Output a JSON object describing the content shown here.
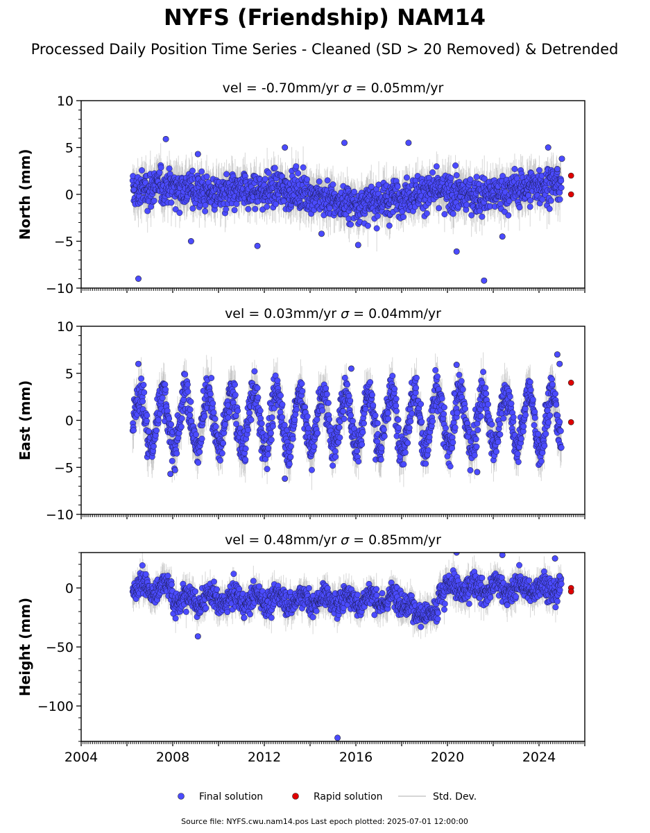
{
  "title": "NYFS (Friendship) NAM14",
  "subtitle": "Processed Daily Position Time Series - Cleaned (SD > 20 Removed) & Detrended",
  "legend": {
    "final_label": "Final solution",
    "rapid_label": "Rapid solution",
    "std_label": "Std. Dev."
  },
  "footer": "Source file: NYFS.cwu.nam14.pos  Last epoch plotted: 2025-07-01 12:00:00",
  "colors": {
    "final": "#4b4bff",
    "rapid": "#e00000",
    "std": "#b8b8b8"
  },
  "chart_data": [
    {
      "type": "scatter",
      "title_vel": "vel = -0.70mm/yr",
      "title_sigma_sym": "σ",
      "title_sigma": " = 0.05mm/yr",
      "ylabel": "North (mm)",
      "xlim": [
        2004,
        2026
      ],
      "ylim": [
        -10,
        10
      ],
      "yticks": [
        10,
        5,
        0,
        -5,
        -10
      ],
      "yticklabels": [
        "10",
        "5",
        "0",
        "−5",
        "−10"
      ],
      "xticks": [],
      "xticklabels": [],
      "series": [
        {
          "name": "Final solution",
          "x": [
            2006.3,
            2006.5,
            2007.7,
            2008.8,
            2009.1,
            2011.7,
            2012.9,
            2014.5,
            2015.5,
            2016.1,
            2018.3,
            2020.4,
            2021.6,
            2022.4,
            2024.4,
            2024.8,
            2025.0
          ],
          "y": [
            0.5,
            -9.0,
            5.9,
            -5.0,
            4.3,
            -5.5,
            5.0,
            -4.2,
            5.5,
            -5.4,
            5.5,
            -6.1,
            -9.2,
            -4.5,
            5.0,
            2.7,
            3.8
          ]
        },
        {
          "name": "Rapid solution",
          "x": [
            2025.4,
            2025.4
          ],
          "y": [
            2.0,
            0.0
          ]
        }
      ]
    },
    {
      "type": "scatter",
      "title_vel": "vel = 0.03mm/yr",
      "title_sigma_sym": "σ",
      "title_sigma": " = 0.04mm/yr",
      "ylabel": "East (mm)",
      "xlim": [
        2004,
        2026
      ],
      "ylim": [
        -10,
        10
      ],
      "yticks": [
        10,
        5,
        0,
        -5,
        -10
      ],
      "yticklabels": [
        "10",
        "5",
        "0",
        "−5",
        "−10"
      ],
      "xticks": [],
      "xticklabels": [],
      "seasonal_amplitude_mm": 3.0,
      "series": [
        {
          "name": "Final solution",
          "x": [
            2006.5,
            2007.9,
            2008.1,
            2012.9,
            2015.8,
            2020.4,
            2021.3,
            2024.8,
            2024.9
          ],
          "y": [
            6.0,
            -5.7,
            -5.3,
            -6.2,
            5.5,
            5.9,
            -5.5,
            7.0,
            6.0
          ]
        },
        {
          "name": "Rapid solution",
          "x": [
            2025.4,
            2025.4
          ],
          "y": [
            4.0,
            -0.2
          ]
        }
      ]
    },
    {
      "type": "scatter",
      "title_vel": "vel = 0.48mm/yr",
      "title_sigma_sym": "σ",
      "title_sigma": " = 0.85mm/yr",
      "ylabel": "Height (mm)",
      "xlim": [
        2004,
        2026
      ],
      "ylim": [
        -130,
        30
      ],
      "yticks": [
        0,
        -50,
        -100
      ],
      "yticklabels": [
        "0",
        "−50",
        "−100"
      ],
      "xticks": [
        2004,
        2008,
        2012,
        2016,
        2020,
        2024
      ],
      "xticklabels": [
        "2004",
        "2008",
        "2012",
        "2016",
        "2020",
        "2024"
      ],
      "series": [
        {
          "name": "Final solution",
          "x": [
            2009.1,
            2015.2,
            2020.4,
            2022.4,
            2024.7,
            2024.9
          ],
          "y": [
            -41,
            -127,
            30,
            28,
            25,
            10
          ]
        },
        {
          "name": "Rapid solution",
          "x": [
            2025.4,
            2025.4
          ],
          "y": [
            0,
            -3
          ]
        }
      ]
    }
  ]
}
